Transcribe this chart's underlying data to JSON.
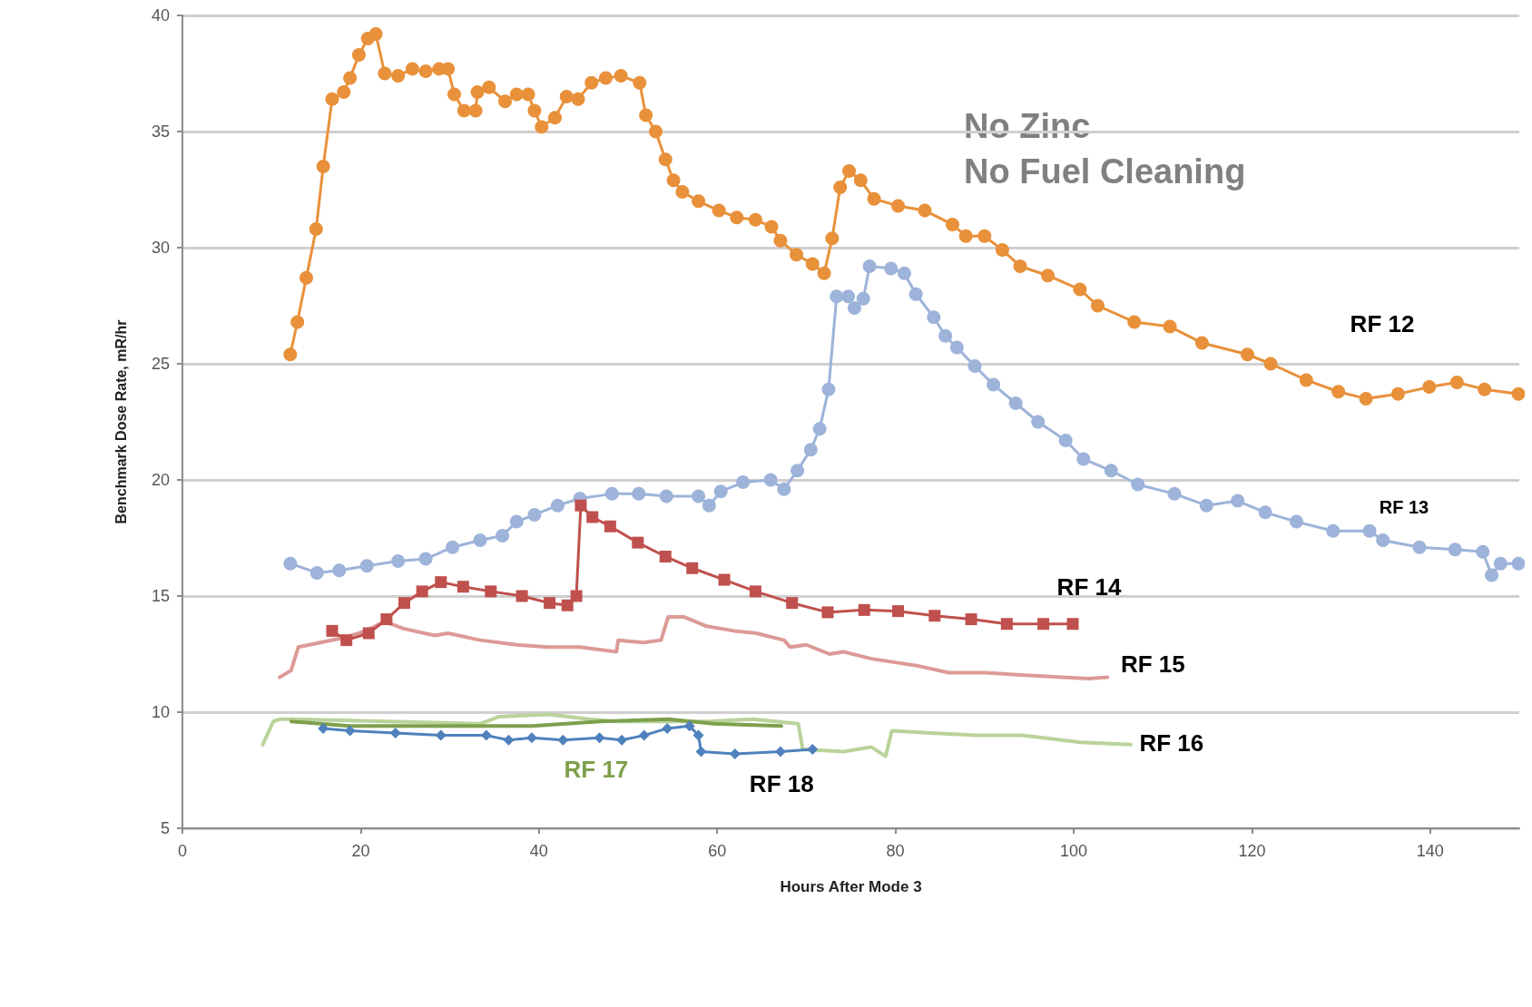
{
  "chart_data": {
    "type": "line",
    "xlabel": "Hours After Mode 3",
    "ylabel": "Benchmark Dose Rate, mR/hr",
    "annotations": [
      "No Zinc",
      "No Fuel Cleaning"
    ],
    "xlim": [
      0,
      150
    ],
    "xticks": [
      0,
      20,
      40,
      60,
      80,
      100,
      120,
      140
    ],
    "ylim": [
      5,
      40
    ],
    "yticks": [
      5,
      10,
      15,
      20,
      25,
      30,
      35,
      40
    ],
    "grid": "y",
    "series": [
      {
        "name": "RF 12",
        "color": "#e8913a",
        "marker": "circle",
        "x": [
          12.1,
          12.9,
          13.9,
          15.0,
          15.8,
          16.8,
          18.1,
          18.8,
          19.8,
          20.8,
          21.7,
          22.7,
          24.2,
          25.8,
          27.3,
          28.8,
          29.8,
          30.5,
          31.6,
          32.9,
          33.1,
          34.4,
          36.2,
          37.5,
          38.8,
          39.5,
          40.3,
          41.8,
          43.1,
          44.4,
          45.9,
          47.5,
          49.2,
          51.3,
          52.0,
          53.1,
          54.2,
          55.1,
          56.1,
          57.9,
          60.2,
          62.2,
          64.3,
          66.1,
          67.1,
          68.9,
          70.7,
          72.0,
          72.9,
          73.8,
          74.8,
          76.1,
          77.6,
          80.3,
          83.3,
          86.4,
          87.9,
          90.0,
          92.0,
          94.0,
          97.1,
          100.7,
          102.7,
          106.8,
          110.8,
          114.4,
          119.5,
          122.1,
          126.1,
          129.7,
          132.8,
          136.4,
          139.9,
          143.0,
          146.1,
          149.9
        ],
        "values": [
          25.4,
          26.8,
          28.7,
          30.8,
          33.5,
          36.4,
          36.7,
          37.3,
          38.3,
          39.0,
          39.2,
          37.5,
          37.4,
          37.7,
          37.6,
          37.7,
          37.7,
          36.6,
          35.9,
          35.9,
          36.7,
          36.9,
          36.3,
          36.6,
          36.6,
          35.9,
          35.2,
          35.6,
          36.5,
          36.4,
          37.1,
          37.3,
          37.4,
          37.1,
          35.7,
          35.0,
          33.8,
          32.9,
          32.4,
          32.0,
          31.6,
          31.3,
          31.2,
          30.9,
          30.3,
          29.7,
          29.3,
          28.9,
          30.4,
          32.6,
          33.3,
          32.9,
          32.1,
          31.8,
          31.6,
          31.0,
          30.5,
          30.5,
          29.9,
          29.2,
          28.8,
          28.2,
          27.5,
          26.8,
          26.6,
          25.9,
          25.4,
          25.0,
          24.3,
          23.8,
          23.5,
          23.7,
          24.0,
          24.2,
          23.9,
          23.7
        ]
      },
      {
        "name": "RF 13",
        "color": "#9db3d9",
        "marker": "circle",
        "x": [
          12.1,
          15.1,
          17.6,
          20.7,
          24.2,
          27.3,
          30.3,
          33.4,
          35.9,
          37.5,
          39.5,
          42.1,
          44.6,
          48.2,
          51.2,
          54.3,
          57.9,
          59.1,
          60.4,
          62.9,
          66.0,
          67.5,
          69.0,
          70.5,
          71.5,
          72.5,
          73.4,
          74.7,
          75.4,
          76.4,
          77.1,
          79.5,
          81.0,
          82.3,
          84.3,
          85.6,
          86.9,
          88.9,
          91.0,
          93.5,
          96.0,
          99.1,
          101.1,
          104.2,
          107.2,
          111.3,
          114.9,
          118.4,
          121.5,
          125.0,
          129.1,
          133.2,
          134.7,
          138.8,
          142.8,
          145.9,
          146.9,
          147.9,
          149.9
        ],
        "values": [
          16.4,
          16.0,
          16.1,
          16.3,
          16.5,
          16.6,
          17.1,
          17.4,
          17.6,
          18.2,
          18.5,
          18.9,
          19.2,
          19.4,
          19.4,
          19.3,
          19.3,
          18.9,
          19.5,
          19.9,
          20.0,
          19.6,
          20.4,
          21.3,
          22.2,
          23.9,
          27.9,
          27.9,
          27.4,
          27.8,
          29.2,
          29.1,
          28.9,
          28.0,
          27.0,
          26.2,
          25.7,
          24.9,
          24.1,
          23.3,
          22.5,
          21.7,
          20.9,
          20.4,
          19.8,
          19.4,
          18.9,
          19.1,
          18.6,
          18.2,
          17.8,
          17.8,
          17.4,
          17.1,
          17.0,
          16.9,
          15.9,
          16.4,
          16.4
        ]
      },
      {
        "name": "RF 14",
        "color": "#c0504d",
        "marker": "square",
        "x": [
          16.8,
          18.4,
          20.9,
          22.9,
          24.9,
          26.9,
          29.0,
          31.5,
          34.6,
          38.1,
          41.2,
          43.2,
          44.2,
          44.7,
          46.0,
          48.0,
          51.1,
          54.2,
          57.2,
          60.8,
          64.3,
          68.4,
          72.4,
          76.5,
          80.3,
          84.4,
          88.5,
          92.5,
          96.6,
          99.9
        ],
        "values": [
          13.5,
          13.1,
          13.4,
          14.0,
          14.7,
          15.2,
          15.6,
          15.4,
          15.2,
          15.0,
          14.7,
          14.6,
          15.0,
          18.9,
          18.4,
          18.0,
          17.3,
          16.7,
          16.2,
          15.7,
          15.2,
          14.7,
          14.3,
          14.4,
          14.35,
          14.15,
          14.0,
          13.8,
          13.8,
          13.8
        ]
      },
      {
        "name": "RF 15",
        "color": "#dc9a97",
        "marker": "none",
        "x": [
          10.9,
          12.2,
          13.0,
          15.5,
          18.1,
          20.6,
          22.7,
          24.8,
          28.3,
          29.8,
          33.4,
          37.5,
          41.0,
          44.6,
          48.7,
          48.9,
          51.7,
          53.7,
          54.5,
          56.3,
          58.8,
          61.9,
          64.4,
          67.5,
          68.2,
          70.0,
          72.6,
          74.2,
          77.3,
          82.4,
          86.0,
          90.0,
          94.1,
          98.7,
          101.7,
          103.8
        ],
        "values": [
          11.5,
          11.8,
          12.8,
          13.0,
          13.2,
          13.5,
          13.9,
          13.6,
          13.3,
          13.4,
          13.1,
          12.9,
          12.8,
          12.8,
          12.6,
          13.1,
          13.0,
          13.1,
          14.1,
          14.1,
          13.7,
          13.5,
          13.4,
          13.1,
          12.8,
          12.9,
          12.5,
          12.6,
          12.3,
          12.0,
          11.7,
          11.7,
          11.6,
          11.5,
          11.45,
          11.5
        ]
      },
      {
        "name": "RF 16",
        "color": "#b9d39a",
        "marker": "none",
        "x": [
          9.0,
          10.2,
          11.0,
          12.5,
          33.4,
          35.5,
          41.1,
          45.7,
          48.7,
          58.9,
          64.0,
          69.1,
          69.6,
          74.2,
          77.3,
          78.9,
          79.6,
          84.0,
          89.1,
          94.2,
          100.8,
          106.4
        ],
        "values": [
          8.6,
          9.6,
          9.7,
          9.7,
          9.5,
          9.8,
          9.9,
          9.7,
          9.6,
          9.6,
          9.7,
          9.5,
          8.4,
          8.3,
          8.5,
          8.1,
          9.2,
          9.1,
          9.0,
          9.0,
          8.7,
          8.6
        ]
      },
      {
        "name": "RF 17",
        "color": "#7ea04d",
        "marker": "none",
        "x": [
          12.2,
          18.8,
          29.0,
          39.2,
          46.9,
          54.5,
          59.6,
          67.2
        ],
        "values": [
          9.6,
          9.4,
          9.4,
          9.4,
          9.6,
          9.7,
          9.5,
          9.4
        ]
      },
      {
        "name": "RF 18",
        "color": "#4f81bd",
        "marker": "diamond",
        "x": [
          15.8,
          18.8,
          23.9,
          29.0,
          34.1,
          36.6,
          39.2,
          42.7,
          46.8,
          49.3,
          51.8,
          54.4,
          56.9,
          57.9,
          58.2,
          62.0,
          67.1,
          70.7
        ],
        "values": [
          9.3,
          9.2,
          9.1,
          9.0,
          9.0,
          8.8,
          8.9,
          8.8,
          8.9,
          8.8,
          9.0,
          9.3,
          9.4,
          9.0,
          8.3,
          8.2,
          8.3,
          8.4
        ]
      }
    ]
  }
}
